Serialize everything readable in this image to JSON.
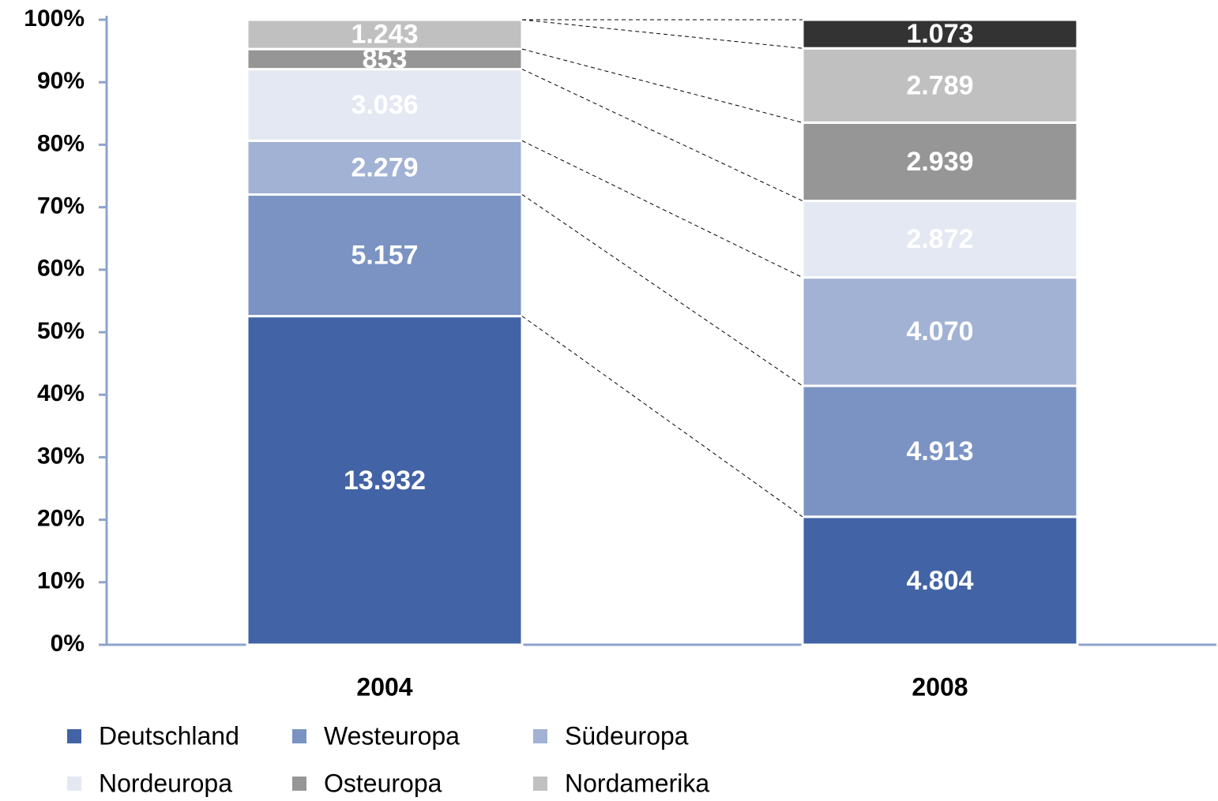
{
  "chart_data": {
    "type": "stacked_bar_100",
    "categories": [
      "2004",
      "2008"
    ],
    "series": [
      {
        "name": "Deutschland",
        "color": "#4263a5",
        "values": [
          13932,
          4804
        ],
        "value_labels": [
          "13.932",
          "4.804"
        ]
      },
      {
        "name": "Westeuropa",
        "color": "#7a93c3",
        "values": [
          5157,
          4913
        ],
        "value_labels": [
          "5.157",
          "4.913"
        ]
      },
      {
        "name": "Südeuropa",
        "color": "#a2b2d4",
        "values": [
          2279,
          4070
        ],
        "value_labels": [
          "2.279",
          "4.070"
        ]
      },
      {
        "name": "Nordeuropa",
        "color": "#e4e8f2",
        "values": [
          3036,
          2872
        ],
        "value_labels": [
          "3.036",
          "2.872"
        ]
      },
      {
        "name": "Osteuropa",
        "color": "#969696",
        "values": [
          853,
          2939
        ],
        "value_labels": [
          "853",
          "2.939"
        ]
      },
      {
        "name": "Nordamerika",
        "color": "#c0c0c0",
        "values": [
          1243,
          2789
        ],
        "value_labels": [
          "1.243",
          "2.789"
        ]
      },
      {
        "color": "#333333",
        "values": [
          null,
          1073
        ],
        "value_labels": [
          null,
          "1.073"
        ]
      }
    ],
    "ylim": [
      0,
      100
    ],
    "yticks": [
      {
        "value": 0,
        "label": "0%"
      },
      {
        "value": 10,
        "label": "10%"
      },
      {
        "value": 20,
        "label": "20%"
      },
      {
        "value": 30,
        "label": "30%"
      },
      {
        "value": 40,
        "label": "40%"
      },
      {
        "value": 50,
        "label": "50%"
      },
      {
        "value": 60,
        "label": "60%"
      },
      {
        "value": 70,
        "label": "70%"
      },
      {
        "value": 80,
        "label": "80%"
      },
      {
        "value": 90,
        "label": "90%"
      },
      {
        "value": 100,
        "label": "100%"
      }
    ],
    "legend": "bottom",
    "axis_color": "#8ea3cc"
  }
}
